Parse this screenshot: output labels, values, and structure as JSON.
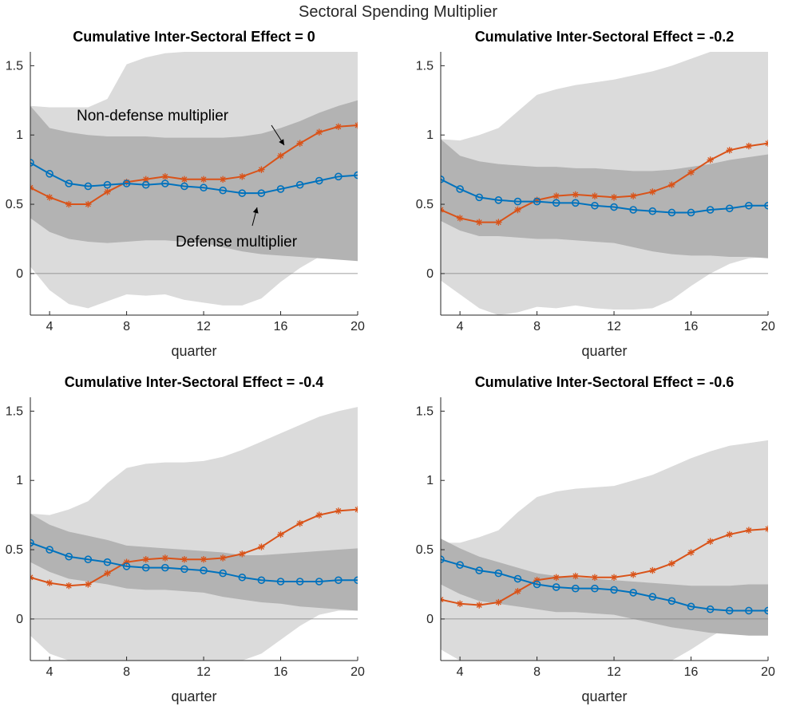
{
  "figure": {
    "title": "Sectoral Spending Multiplier",
    "colors": {
      "defense": "#0072BD",
      "nondefense": "#D95319",
      "band_outer": "#dbdbdb",
      "band_inner": "#b3b3b3",
      "zero_line": "#808080",
      "axis": "#262626"
    }
  },
  "chart_data": [
    {
      "type": "line",
      "title": "Cumulative Inter-Sectoral Effect = 0",
      "xlabel": "quarter",
      "ylabel": "",
      "xlim": [
        3,
        20
      ],
      "ylim": [
        -0.3,
        1.6
      ],
      "xticks": [
        4,
        8,
        12,
        16,
        20
      ],
      "xtick_labels": [
        "4",
        "8",
        "12",
        "16",
        "20"
      ],
      "yticks": [
        0,
        0.5,
        1,
        1.5
      ],
      "ytick_labels": [
        "0",
        "0.5",
        "1",
        "1.5"
      ],
      "x": [
        3,
        4,
        5,
        6,
        7,
        8,
        9,
        10,
        11,
        12,
        13,
        14,
        15,
        16,
        17,
        18,
        19,
        20
      ],
      "series": [
        {
          "name": "Non-defense multiplier",
          "marker": "asterisk",
          "values": [
            0.62,
            0.55,
            0.5,
            0.5,
            0.59,
            0.66,
            0.68,
            0.7,
            0.68,
            0.68,
            0.68,
            0.7,
            0.75,
            0.85,
            0.94,
            1.02,
            1.06,
            1.07
          ]
        },
        {
          "name": "Defense multiplier",
          "marker": "circle",
          "values": [
            0.8,
            0.72,
            0.65,
            0.63,
            0.64,
            0.65,
            0.64,
            0.65,
            0.63,
            0.62,
            0.6,
            0.58,
            0.58,
            0.61,
            0.64,
            0.67,
            0.7,
            0.71
          ]
        }
      ],
      "band_outer": {
        "upper": [
          1.21,
          1.2,
          1.2,
          1.2,
          1.26,
          1.51,
          1.56,
          1.59,
          1.6,
          1.6,
          1.6,
          1.6,
          1.6,
          1.6,
          1.6,
          1.6,
          1.6,
          1.6
        ],
        "lower": [
          0.05,
          -0.12,
          -0.22,
          -0.25,
          -0.2,
          -0.15,
          -0.16,
          -0.15,
          -0.19,
          -0.21,
          -0.23,
          -0.23,
          -0.18,
          -0.06,
          0.04,
          0.12,
          0.16,
          0.14
        ]
      },
      "band_inner": {
        "upper": [
          1.21,
          1.05,
          1.02,
          1.0,
          0.99,
          0.99,
          0.99,
          0.98,
          0.98,
          0.98,
          0.98,
          0.99,
          1.01,
          1.05,
          1.1,
          1.16,
          1.21,
          1.25
        ],
        "lower": [
          0.4,
          0.3,
          0.25,
          0.23,
          0.22,
          0.23,
          0.24,
          0.24,
          0.23,
          0.22,
          0.19,
          0.16,
          0.14,
          0.13,
          0.12,
          0.11,
          0.1,
          0.09
        ]
      },
      "annotations": [
        {
          "text": "Non-defense multiplier",
          "series": "Non-defense multiplier",
          "x": 16,
          "y": 0.85
        },
        {
          "text": "Defense multiplier",
          "series": "Defense multiplier",
          "x": 15,
          "y": 0.58
        }
      ]
    },
    {
      "type": "line",
      "title": "Cumulative Inter-Sectoral Effect = -0.2",
      "xlabel": "quarter",
      "ylabel": "",
      "xlim": [
        3,
        20
      ],
      "ylim": [
        -0.3,
        1.6
      ],
      "xticks": [
        4,
        8,
        12,
        16,
        20
      ],
      "xtick_labels": [
        "4",
        "8",
        "12",
        "16",
        "20"
      ],
      "yticks": [
        0,
        0.5,
        1,
        1.5
      ],
      "ytick_labels": [
        "0",
        "0.5",
        "1",
        "1.5"
      ],
      "x": [
        3,
        4,
        5,
        6,
        7,
        8,
        9,
        10,
        11,
        12,
        13,
        14,
        15,
        16,
        17,
        18,
        19,
        20
      ],
      "series": [
        {
          "name": "Non-defense multiplier",
          "marker": "asterisk",
          "values": [
            0.46,
            0.4,
            0.37,
            0.37,
            0.46,
            0.53,
            0.56,
            0.57,
            0.56,
            0.55,
            0.56,
            0.59,
            0.64,
            0.73,
            0.82,
            0.89,
            0.92,
            0.94
          ]
        },
        {
          "name": "Defense multiplier",
          "marker": "circle",
          "values": [
            0.68,
            0.61,
            0.55,
            0.53,
            0.52,
            0.52,
            0.51,
            0.51,
            0.49,
            0.48,
            0.46,
            0.45,
            0.44,
            0.44,
            0.46,
            0.47,
            0.49,
            0.49
          ]
        }
      ],
      "band_outer": {
        "upper": [
          0.97,
          0.96,
          1.0,
          1.05,
          1.17,
          1.29,
          1.33,
          1.36,
          1.38,
          1.4,
          1.43,
          1.46,
          1.5,
          1.55,
          1.6,
          1.6,
          1.6,
          1.6
        ],
        "lower": [
          -0.05,
          -0.15,
          -0.25,
          -0.3,
          -0.28,
          -0.24,
          -0.25,
          -0.23,
          -0.25,
          -0.26,
          -0.26,
          -0.25,
          -0.19,
          -0.09,
          0.0,
          0.07,
          0.11,
          0.12
        ]
      },
      "band_inner": {
        "upper": [
          0.97,
          0.85,
          0.81,
          0.79,
          0.78,
          0.77,
          0.77,
          0.76,
          0.76,
          0.75,
          0.74,
          0.74,
          0.75,
          0.77,
          0.79,
          0.82,
          0.84,
          0.86
        ],
        "lower": [
          0.38,
          0.31,
          0.27,
          0.27,
          0.26,
          0.25,
          0.25,
          0.24,
          0.23,
          0.22,
          0.19,
          0.16,
          0.14,
          0.13,
          0.13,
          0.12,
          0.12,
          0.11
        ]
      }
    },
    {
      "type": "line",
      "title": "Cumulative Inter-Sectoral Effect = -0.4",
      "xlabel": "quarter",
      "ylabel": "",
      "xlim": [
        3,
        20
      ],
      "ylim": [
        -0.3,
        1.6
      ],
      "xticks": [
        4,
        8,
        12,
        16,
        20
      ],
      "xtick_labels": [
        "4",
        "8",
        "12",
        "16",
        "20"
      ],
      "yticks": [
        0,
        0.5,
        1,
        1.5
      ],
      "ytick_labels": [
        "0",
        "0.5",
        "1",
        "1.5"
      ],
      "x": [
        3,
        4,
        5,
        6,
        7,
        8,
        9,
        10,
        11,
        12,
        13,
        14,
        15,
        16,
        17,
        18,
        19,
        20
      ],
      "series": [
        {
          "name": "Non-defense multiplier",
          "marker": "asterisk",
          "values": [
            0.3,
            0.26,
            0.24,
            0.25,
            0.33,
            0.41,
            0.43,
            0.44,
            0.43,
            0.43,
            0.44,
            0.47,
            0.52,
            0.61,
            0.69,
            0.75,
            0.78,
            0.79
          ]
        },
        {
          "name": "Defense multiplier",
          "marker": "circle",
          "values": [
            0.55,
            0.5,
            0.45,
            0.43,
            0.41,
            0.38,
            0.37,
            0.37,
            0.36,
            0.35,
            0.33,
            0.3,
            0.28,
            0.27,
            0.27,
            0.27,
            0.28,
            0.28
          ]
        }
      ],
      "band_outer": {
        "upper": [
          0.76,
          0.75,
          0.79,
          0.85,
          0.98,
          1.09,
          1.12,
          1.13,
          1.13,
          1.14,
          1.17,
          1.22,
          1.28,
          1.34,
          1.4,
          1.46,
          1.5,
          1.53
        ],
        "lower": [
          -0.12,
          -0.25,
          -0.3,
          -0.3,
          -0.3,
          -0.3,
          -0.3,
          -0.3,
          -0.3,
          -0.3,
          -0.3,
          -0.3,
          -0.25,
          -0.15,
          -0.05,
          0.03,
          0.06,
          0.06
        ]
      },
      "band_inner": {
        "upper": [
          0.76,
          0.68,
          0.63,
          0.6,
          0.57,
          0.53,
          0.52,
          0.51,
          0.5,
          0.49,
          0.48,
          0.46,
          0.46,
          0.47,
          0.48,
          0.49,
          0.5,
          0.51
        ],
        "lower": [
          0.41,
          0.34,
          0.29,
          0.27,
          0.25,
          0.22,
          0.21,
          0.21,
          0.2,
          0.19,
          0.16,
          0.14,
          0.12,
          0.11,
          0.09,
          0.08,
          0.07,
          0.06
        ]
      }
    },
    {
      "type": "line",
      "title": "Cumulative Inter-Sectoral Effect = -0.6",
      "xlabel": "quarter",
      "ylabel": "",
      "xlim": [
        3,
        20
      ],
      "ylim": [
        -0.3,
        1.6
      ],
      "xticks": [
        4,
        8,
        12,
        16,
        20
      ],
      "xtick_labels": [
        "4",
        "8",
        "12",
        "16",
        "20"
      ],
      "yticks": [
        0,
        0.5,
        1,
        1.5
      ],
      "ytick_labels": [
        "0",
        "0.5",
        "1",
        "1.5"
      ],
      "x": [
        3,
        4,
        5,
        6,
        7,
        8,
        9,
        10,
        11,
        12,
        13,
        14,
        15,
        16,
        17,
        18,
        19,
        20
      ],
      "series": [
        {
          "name": "Non-defense multiplier",
          "marker": "asterisk",
          "values": [
            0.14,
            0.11,
            0.1,
            0.12,
            0.2,
            0.28,
            0.3,
            0.31,
            0.3,
            0.3,
            0.32,
            0.35,
            0.4,
            0.48,
            0.56,
            0.61,
            0.64,
            0.65
          ]
        },
        {
          "name": "Defense multiplier",
          "marker": "circle",
          "values": [
            0.43,
            0.39,
            0.35,
            0.33,
            0.29,
            0.25,
            0.23,
            0.22,
            0.22,
            0.21,
            0.19,
            0.16,
            0.13,
            0.09,
            0.07,
            0.06,
            0.06,
            0.06
          ]
        }
      ],
      "band_outer": {
        "upper": [
          0.55,
          0.55,
          0.59,
          0.64,
          0.77,
          0.88,
          0.92,
          0.94,
          0.95,
          0.96,
          1.0,
          1.04,
          1.1,
          1.16,
          1.21,
          1.25,
          1.27,
          1.29
        ],
        "lower": [
          -0.22,
          -0.3,
          -0.3,
          -0.3,
          -0.3,
          -0.3,
          -0.3,
          -0.3,
          -0.3,
          -0.3,
          -0.3,
          -0.3,
          -0.3,
          -0.22,
          -0.13,
          -0.05,
          0.0,
          0.02
        ]
      },
      "band_inner": {
        "upper": [
          0.58,
          0.51,
          0.45,
          0.41,
          0.37,
          0.33,
          0.31,
          0.3,
          0.29,
          0.28,
          0.27,
          0.26,
          0.25,
          0.24,
          0.24,
          0.24,
          0.25,
          0.25
        ],
        "lower": [
          0.25,
          0.18,
          0.13,
          0.11,
          0.09,
          0.07,
          0.05,
          0.05,
          0.04,
          0.03,
          0.0,
          -0.03,
          -0.06,
          -0.08,
          -0.1,
          -0.11,
          -0.12,
          -0.12
        ]
      }
    }
  ]
}
